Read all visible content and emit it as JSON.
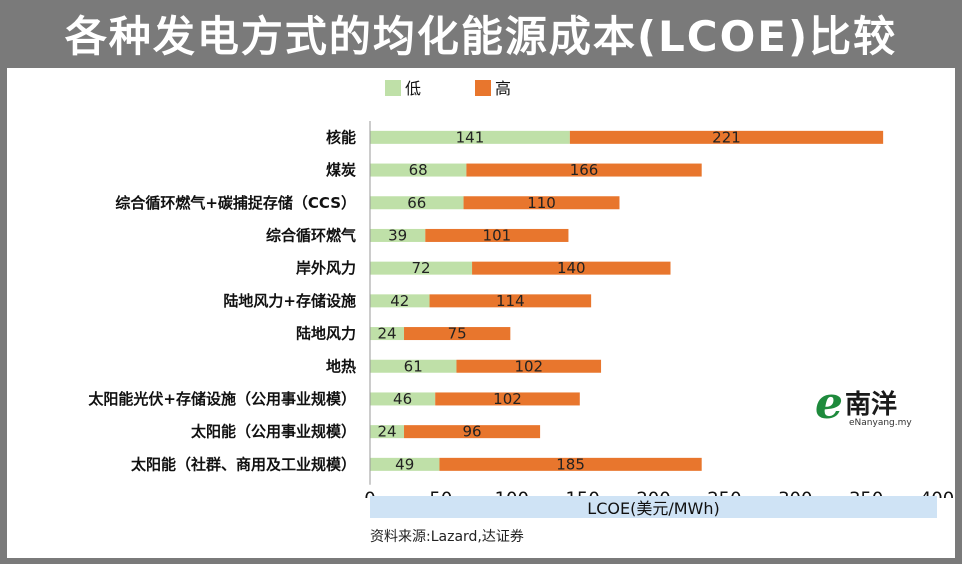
{
  "title": "各种发电方式的均化能源成本(LCOE)比较",
  "legend": {
    "low_label": "低",
    "high_label": "高"
  },
  "colors": {
    "low": "#bfe0a8",
    "high": "#e8762d",
    "axis_band": "#cfe3f5",
    "frame": "#7a7a7a"
  },
  "chart_data": {
    "type": "bar",
    "orientation": "horizontal",
    "stacked": true,
    "categories": [
      "核能",
      "煤炭",
      "综合循环燃气+碳捕捉存储（CCS）",
      "综合循环燃气",
      "岸外风力",
      "陆地风力+存储设施",
      "陆地风力",
      "地热",
      "太阳能光伏+存储设施（公用事业规模）",
      "太阳能（公用事业规模）",
      "太阳能（社群、商用及工业规模）"
    ],
    "series": [
      {
        "name": "低",
        "values": [
          141,
          68,
          66,
          39,
          72,
          42,
          24,
          61,
          46,
          24,
          49
        ]
      },
      {
        "name": "高",
        "values": [
          221,
          166,
          110,
          101,
          140,
          114,
          75,
          102,
          102,
          96,
          185
        ]
      }
    ],
    "xlabel": "LCOE(美元/MWh)",
    "xlim": [
      0,
      400
    ],
    "xticks": [
      0,
      50,
      100,
      150,
      200,
      250,
      300,
      350,
      400
    ],
    "grid": false,
    "legend_position": "top-left"
  },
  "source": "资料来源:Lazard,达证券",
  "logo": {
    "mark": "e",
    "name": "南洋",
    "site": "eNanyang.my"
  }
}
